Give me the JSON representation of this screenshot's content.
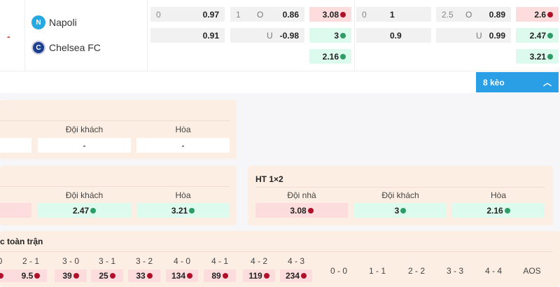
{
  "match": {
    "status": "-",
    "home": "Napoli",
    "away": "Chelsea FC",
    "home_logo": "napoli-logo-icon",
    "away_logo": "chelsea-logo-icon"
  },
  "odds": {
    "ft_handicap": {
      "line": "0",
      "home": "0.97",
      "away": "0.91"
    },
    "ft_ou": {
      "line": "1",
      "over_label": "O",
      "under_label": "U",
      "over": "0.86",
      "under": "-0.98"
    },
    "ft_1x2": {
      "home": "3.08",
      "away": "3",
      "draw": "2.16"
    },
    "h2_handicap": {
      "line": "0",
      "home": "1",
      "away": "0.9"
    },
    "h2_ou": {
      "line": "2.5",
      "over_label": "O",
      "under_label": "U",
      "over": "0.89",
      "under": "0.99"
    },
    "h2_1x2": {
      "home": "2.6",
      "away": "2.47",
      "draw": "3.21"
    }
  },
  "more_button": {
    "label": "8 kèo",
    "icon": "chevron-up-icon"
  },
  "panel1": {
    "labels": [
      "Đội khách",
      "Hòa"
    ],
    "values": [
      "-",
      "-"
    ]
  },
  "panel2": {
    "labels": [
      "Đội khách",
      "Hòa"
    ],
    "values": [
      "2.47",
      "3.21"
    ]
  },
  "ht1x2": {
    "title": "HT 1×2",
    "labels": [
      "Đội nhà",
      "Đội khách",
      "Hòa"
    ],
    "values": [
      "3.08",
      "3",
      "2.16"
    ]
  },
  "correct_score": {
    "title": "c toàn trận",
    "home_scores": [
      {
        "s": "0",
        "v": ""
      },
      {
        "s": "2 - 1",
        "v": "9.5"
      },
      {
        "s": "3 - 0",
        "v": "39"
      },
      {
        "s": "3 - 1",
        "v": "25"
      },
      {
        "s": "3 - 2",
        "v": "33"
      },
      {
        "s": "4 - 0",
        "v": "134"
      },
      {
        "s": "4 - 1",
        "v": "89"
      },
      {
        "s": "4 - 2",
        "v": "119"
      },
      {
        "s": "4 - 3",
        "v": "234"
      }
    ],
    "draws": [
      "0 - 0",
      "1 - 1",
      "2 - 2",
      "3 - 3",
      "4 - 4",
      "AOS"
    ]
  },
  "colors": {
    "accent": "#2b9fe6",
    "down": "#b0102a",
    "up": "#2e9c66",
    "panel": "#fdeee3"
  }
}
